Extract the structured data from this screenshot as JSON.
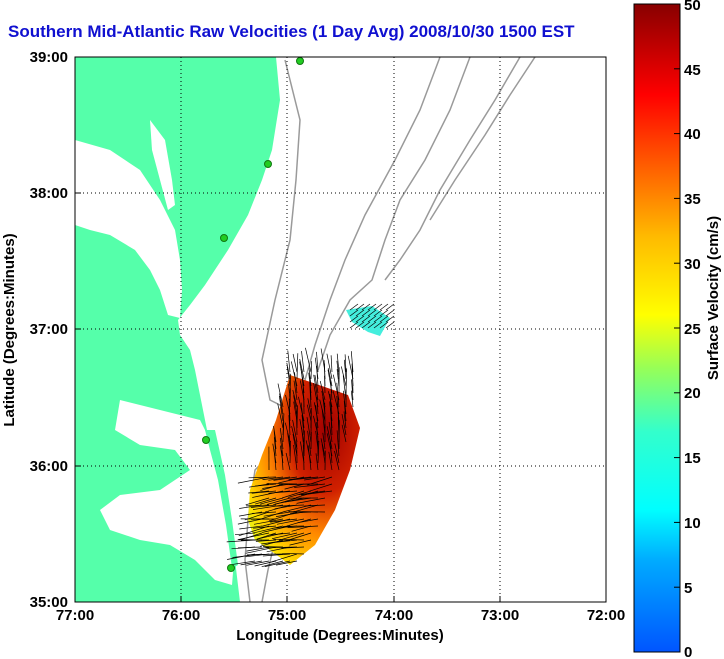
{
  "title": "Southern Mid-Atlantic Raw Velocities (1 Day Avg) 2008/10/30 1500 EST",
  "x_axis": {
    "label": "Longitude (Degrees:Minutes)",
    "ticks": [
      "77:00",
      "76:00",
      "75:00",
      "74:00",
      "73:00",
      "72:00"
    ]
  },
  "y_axis": {
    "label": "Latitude (Degrees:Minutes)",
    "ticks": [
      "39:00",
      "38:00",
      "37:00",
      "36:00",
      "35:00"
    ]
  },
  "colorbar": {
    "label": "Surface Velocity (cm/s)",
    "ticks": [
      "50",
      "45",
      "40",
      "35",
      "30",
      "25",
      "20",
      "15",
      "10",
      "5",
      "0"
    ],
    "range": [
      0,
      50
    ]
  },
  "colors": {
    "land": "#55ffaa",
    "water": "#ffffff",
    "title": "#1010d0",
    "bathymetry": "#9a9a9a",
    "station": "#22cc22"
  },
  "map_extent": {
    "lon_range": [
      -77,
      -72
    ],
    "lat_range": [
      35,
      39
    ]
  }
}
